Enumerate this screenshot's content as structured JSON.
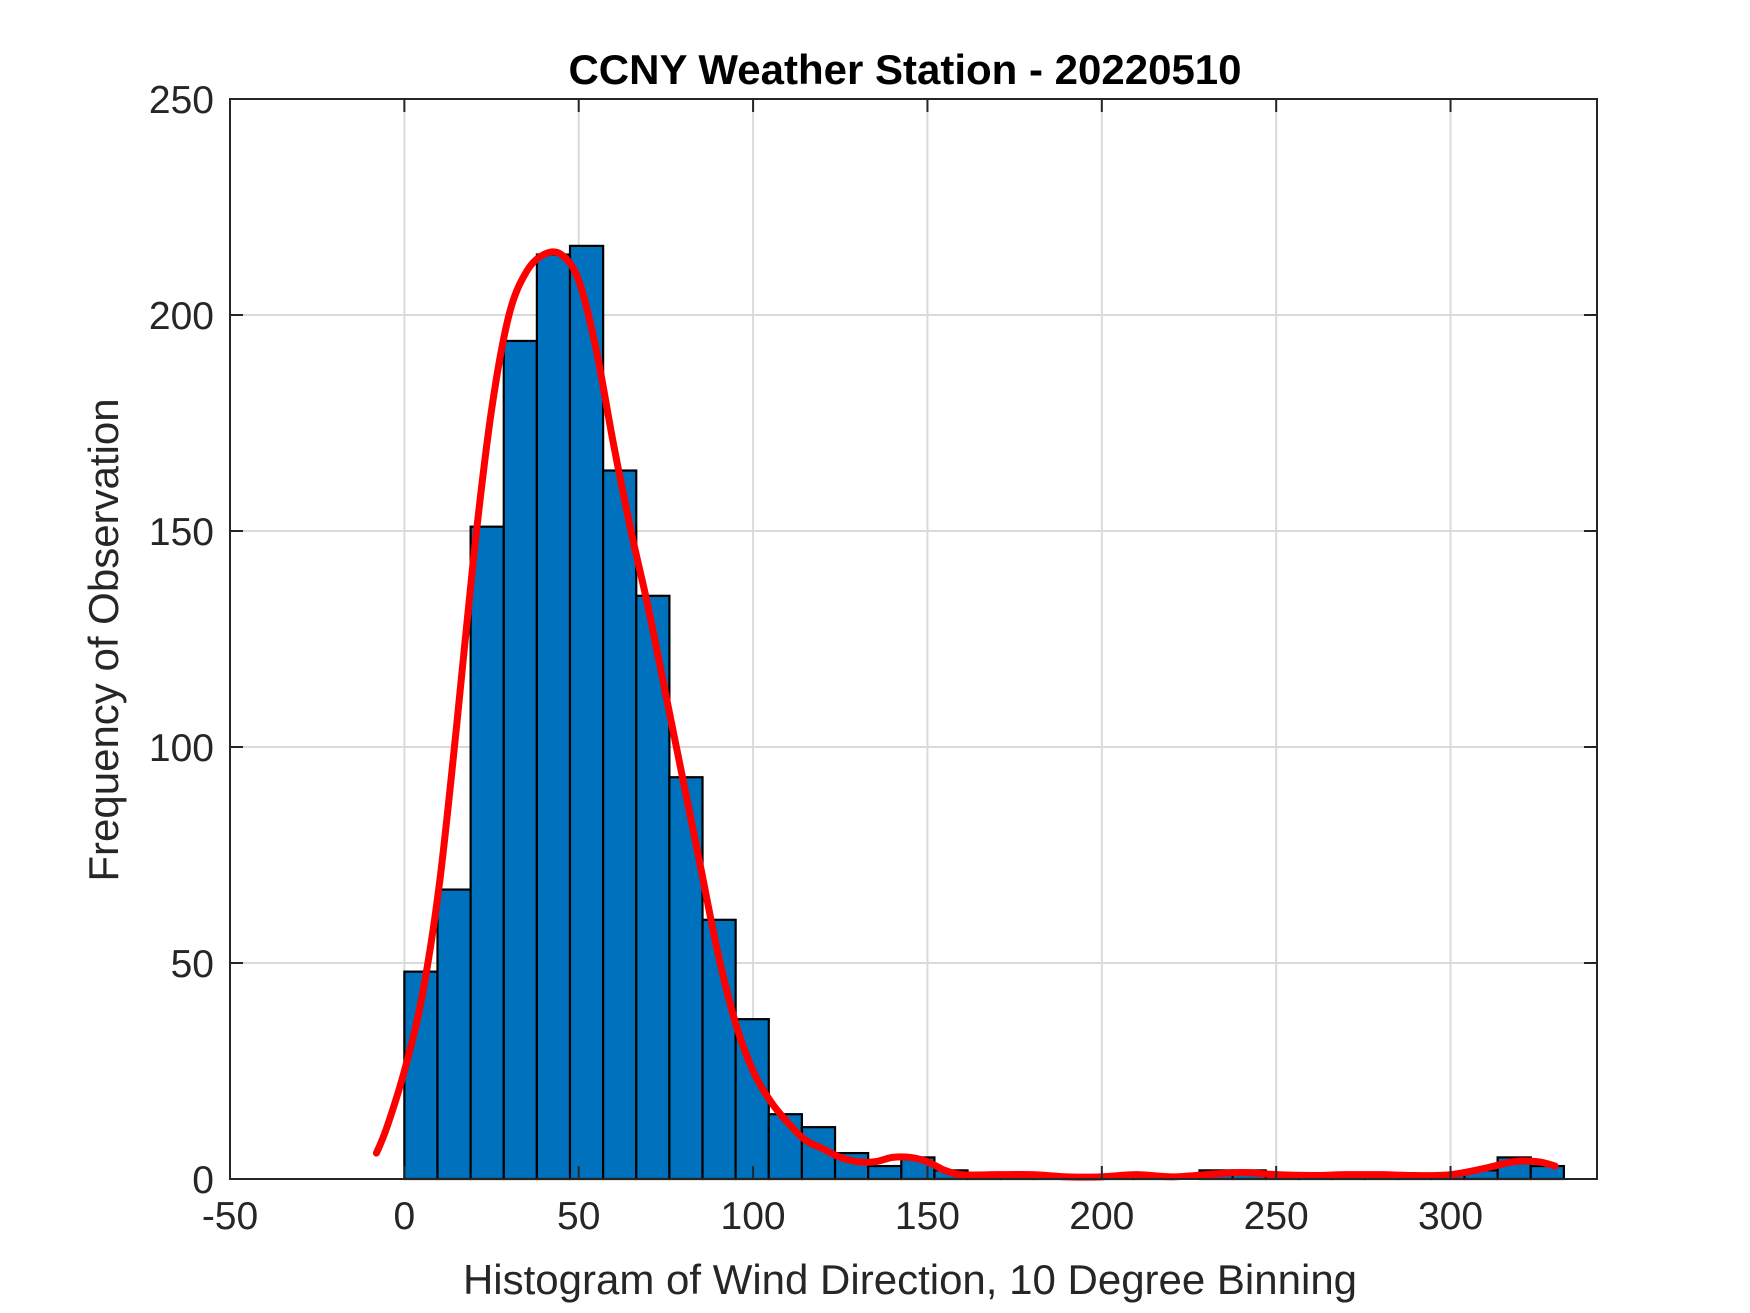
{
  "chart_data": {
    "type": "bar",
    "title": "CCNY Weather Station - 20220510",
    "xlabel": "Histogram of Wind Direction, 10 Degree Binning",
    "ylabel": "Frequency of Observation",
    "xlim": [
      -50,
      342
    ],
    "ylim": [
      0,
      250
    ],
    "x_ticks": [
      -50,
      0,
      50,
      100,
      150,
      200,
      250,
      300
    ],
    "y_ticks": [
      0,
      50,
      100,
      150,
      200,
      250
    ],
    "grid": true,
    "bin_width": 9.5,
    "bar_color": "#0072bd",
    "bar_edge_color": "#000000",
    "fit_color": "#ff0000",
    "bins": [
      {
        "x0": 0,
        "value": 48
      },
      {
        "x0": 9.5,
        "value": 67
      },
      {
        "x0": 19,
        "value": 151
      },
      {
        "x0": 28.5,
        "value": 194
      },
      {
        "x0": 38,
        "value": 214
      },
      {
        "x0": 47.5,
        "value": 216
      },
      {
        "x0": 57,
        "value": 164
      },
      {
        "x0": 66.5,
        "value": 135
      },
      {
        "x0": 76,
        "value": 93
      },
      {
        "x0": 85.5,
        "value": 60
      },
      {
        "x0": 95,
        "value": 37
      },
      {
        "x0": 104.5,
        "value": 15
      },
      {
        "x0": 114,
        "value": 12
      },
      {
        "x0": 123.5,
        "value": 6
      },
      {
        "x0": 133,
        "value": 3
      },
      {
        "x0": 142.5,
        "value": 5
      },
      {
        "x0": 152,
        "value": 2
      },
      {
        "x0": 161.5,
        "value": 1
      },
      {
        "x0": 171,
        "value": 1
      },
      {
        "x0": 180.5,
        "value": 1
      },
      {
        "x0": 190,
        "value": 0
      },
      {
        "x0": 199.5,
        "value": 1
      },
      {
        "x0": 209,
        "value": 1
      },
      {
        "x0": 218.5,
        "value": 0
      },
      {
        "x0": 228,
        "value": 2
      },
      {
        "x0": 237.5,
        "value": 2
      },
      {
        "x0": 247,
        "value": 1
      },
      {
        "x0": 256.5,
        "value": 1
      },
      {
        "x0": 266,
        "value": 1
      },
      {
        "x0": 275.5,
        "value": 1
      },
      {
        "x0": 285,
        "value": 1
      },
      {
        "x0": 294.5,
        "value": 1
      },
      {
        "x0": 304,
        "value": 2
      },
      {
        "x0": 313.5,
        "value": 5
      },
      {
        "x0": 323,
        "value": 3
      }
    ],
    "fit_curve": {
      "name": "density fit",
      "points": [
        [
          -8,
          6
        ],
        [
          -5,
          12
        ],
        [
          0,
          25
        ],
        [
          5,
          42
        ],
        [
          10,
          68
        ],
        [
          15,
          105
        ],
        [
          20,
          145
        ],
        [
          25,
          178
        ],
        [
          30,
          200
        ],
        [
          35,
          210
        ],
        [
          40,
          214
        ],
        [
          45,
          214
        ],
        [
          50,
          208
        ],
        [
          55,
          192
        ],
        [
          60,
          170
        ],
        [
          65,
          150
        ],
        [
          70,
          132
        ],
        [
          75,
          112
        ],
        [
          80,
          92
        ],
        [
          85,
          72
        ],
        [
          90,
          52
        ],
        [
          95,
          36
        ],
        [
          100,
          25
        ],
        [
          105,
          18
        ],
        [
          110,
          13
        ],
        [
          115,
          9
        ],
        [
          120,
          7
        ],
        [
          125,
          5
        ],
        [
          130,
          4
        ],
        [
          135,
          4
        ],
        [
          140,
          5
        ],
        [
          145,
          5
        ],
        [
          150,
          4
        ],
        [
          155,
          2
        ],
        [
          160,
          1
        ],
        [
          170,
          1
        ],
        [
          180,
          1
        ],
        [
          190,
          0.5
        ],
        [
          200,
          0.5
        ],
        [
          210,
          1
        ],
        [
          220,
          0.5
        ],
        [
          230,
          1
        ],
        [
          240,
          1.5
        ],
        [
          250,
          1
        ],
        [
          260,
          0.8
        ],
        [
          270,
          1
        ],
        [
          280,
          1
        ],
        [
          290,
          0.8
        ],
        [
          300,
          1
        ],
        [
          310,
          2.5
        ],
        [
          318,
          4
        ],
        [
          325,
          4
        ],
        [
          330,
          3
        ]
      ]
    }
  }
}
